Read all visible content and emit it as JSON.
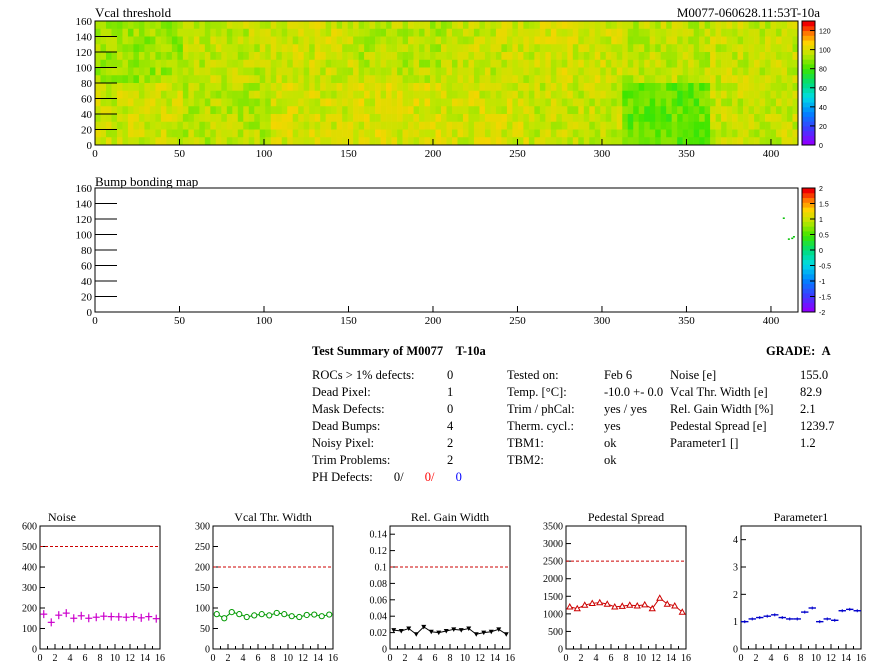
{
  "header": {
    "module_id": "M0077-060628.11:53T-10a"
  },
  "chart_data": [
    {
      "type": "heatmap",
      "title": "Vcal threshold",
      "x_ticks": [
        "0",
        "50",
        "100",
        "150",
        "200",
        "250",
        "300",
        "350",
        "400"
      ],
      "y_ticks": [
        "0",
        "20",
        "40",
        "60",
        "80",
        "100",
        "120",
        "140",
        "160"
      ],
      "xlim": [
        0,
        416
      ],
      "ylim": [
        0,
        160
      ],
      "colorbar_ticks": [
        "0",
        "20",
        "40",
        "60",
        "80",
        "100",
        "120"
      ],
      "colorbar_range": [
        0,
        130
      ],
      "roc_grid": {
        "cols": 8,
        "rows": 2,
        "col_width": 52,
        "row_height": 80
      },
      "roc_mean_values": [
        [
          92,
          97,
          99,
          96,
          98,
          100,
          97,
          98
        ],
        [
          99,
          96,
          100,
          101,
          100,
          98,
          85,
          98
        ]
      ],
      "roc_order_note": "top row listed first"
    },
    {
      "type": "heatmap",
      "title": "Bump bonding map",
      "x_ticks": [
        "0",
        "50",
        "100",
        "150",
        "200",
        "250",
        "300",
        "350",
        "400"
      ],
      "y_ticks": [
        "0",
        "20",
        "40",
        "60",
        "80",
        "100",
        "120",
        "140",
        "160"
      ],
      "xlim": [
        0,
        416
      ],
      "ylim": [
        0,
        160
      ],
      "colorbar_ticks": [
        "-2",
        "-1.5",
        "-1",
        "-0.5",
        "0",
        "0.5",
        "1",
        "1.5",
        "2"
      ],
      "colorbar_range": [
        -2,
        2
      ],
      "points": [
        [
          407,
          122
        ],
        [
          410,
          95
        ],
        [
          412,
          96
        ],
        [
          413,
          98
        ]
      ]
    },
    {
      "type": "line",
      "title": "Noise",
      "x_ticks": [
        "0",
        "2",
        "4",
        "6",
        "8",
        "10",
        "12",
        "14",
        "16"
      ],
      "y_ticks": [
        "0",
        "100",
        "200",
        "300",
        "400",
        "500",
        "600"
      ],
      "xlim": [
        0,
        16
      ],
      "ylim": [
        0,
        600
      ],
      "limit_line": 500,
      "marker": "plus",
      "color": "#cc00cc",
      "x": [
        0,
        1,
        2,
        3,
        4,
        5,
        6,
        7,
        8,
        9,
        10,
        11,
        12,
        13,
        14,
        15
      ],
      "values": [
        170,
        130,
        165,
        175,
        150,
        162,
        150,
        155,
        160,
        158,
        157,
        155,
        158,
        152,
        158,
        148
      ]
    },
    {
      "type": "line",
      "title": "Vcal Thr. Width",
      "x_ticks": [
        "0",
        "2",
        "4",
        "6",
        "8",
        "10",
        "12",
        "14",
        "16"
      ],
      "y_ticks": [
        "0",
        "50",
        "100",
        "150",
        "200",
        "250",
        "300"
      ],
      "xlim": [
        0,
        16
      ],
      "ylim": [
        0,
        300
      ],
      "limit_line": 200,
      "marker": "circle",
      "color": "#009900",
      "x": [
        0,
        1,
        2,
        3,
        4,
        5,
        6,
        7,
        8,
        9,
        10,
        11,
        12,
        13,
        14,
        15
      ],
      "values": [
        85,
        75,
        90,
        85,
        78,
        82,
        85,
        82,
        88,
        85,
        80,
        78,
        83,
        84,
        80,
        84
      ]
    },
    {
      "type": "line",
      "title": "Rel. Gain Width",
      "x_ticks": [
        "0",
        "2",
        "4",
        "6",
        "8",
        "10",
        "12",
        "14",
        "16"
      ],
      "y_ticks": [
        "0",
        "0.02",
        "0.04",
        "0.06",
        "0.08",
        "0.1",
        "0.12",
        "0.14"
      ],
      "xlim": [
        0,
        16
      ],
      "ylim": [
        0,
        0.15
      ],
      "limit_line": 0.1,
      "marker": "triangle-down",
      "color": "#000000",
      "x": [
        0,
        1,
        2,
        3,
        4,
        5,
        6,
        7,
        8,
        9,
        10,
        11,
        12,
        13,
        14,
        15
      ],
      "values": [
        0.023,
        0.022,
        0.025,
        0.018,
        0.027,
        0.021,
        0.02,
        0.022,
        0.024,
        0.023,
        0.025,
        0.018,
        0.02,
        0.021,
        0.024,
        0.018
      ]
    },
    {
      "type": "line",
      "title": "Pedestal Spread",
      "x_ticks": [
        "0",
        "2",
        "4",
        "6",
        "8",
        "10",
        "12",
        "14",
        "16"
      ],
      "y_ticks": [
        "0",
        "500",
        "1000",
        "1500",
        "2000",
        "2500",
        "3000",
        "3500"
      ],
      "xlim": [
        0,
        16
      ],
      "ylim": [
        0,
        3500
      ],
      "limit_line": 2500,
      "marker": "triangle-up",
      "color": "#cc0000",
      "x": [
        0,
        1,
        2,
        3,
        4,
        5,
        6,
        7,
        8,
        9,
        10,
        11,
        12,
        13,
        14,
        15
      ],
      "values": [
        1200,
        1150,
        1250,
        1300,
        1320,
        1280,
        1200,
        1220,
        1250,
        1230,
        1260,
        1150,
        1450,
        1280,
        1230,
        1050
      ]
    },
    {
      "type": "line",
      "title": "Parameter1",
      "x_ticks": [
        "0",
        "2",
        "4",
        "6",
        "8",
        "10",
        "12",
        "14",
        "16"
      ],
      "y_ticks": [
        "0",
        "1",
        "2",
        "3",
        "4"
      ],
      "xlim": [
        0,
        16
      ],
      "ylim": [
        0,
        4.5
      ],
      "marker": "hbar",
      "color": "#0000cc",
      "x": [
        0,
        1,
        2,
        3,
        4,
        5,
        6,
        7,
        8,
        9,
        10,
        11,
        12,
        13,
        14,
        15
      ],
      "values": [
        1.0,
        1.1,
        1.15,
        1.2,
        1.25,
        1.15,
        1.1,
        1.1,
        1.35,
        1.5,
        1.0,
        1.1,
        1.05,
        1.4,
        1.45,
        1.4
      ]
    }
  ],
  "summary": {
    "title": "Test Summary of M0077",
    "temp_tag": "T-10a",
    "grade_label": "GRADE:",
    "grade_value": "A",
    "defects": [
      {
        "label": "ROCs > 1% defects:",
        "value": "0"
      },
      {
        "label": "Dead Pixel:",
        "value": "1"
      },
      {
        "label": "Mask Defects:",
        "value": "0"
      },
      {
        "label": "Dead Bumps:",
        "value": "4"
      },
      {
        "label": "Noisy Pixel:",
        "value": "2"
      },
      {
        "label": "Trim Problems:",
        "value": "2"
      }
    ],
    "ph_defects": {
      "label": "PH Defects:",
      "v1": "0/",
      "v2": "0/",
      "v3": "0",
      "c1": "#000000",
      "c2": "#ff0000",
      "c3": "#0000ff"
    },
    "conditions": [
      {
        "label": "Tested on:",
        "value": "Feb 6"
      },
      {
        "label": "Temp. [°C]:",
        "value": "-10.0 +- 0.0"
      },
      {
        "label": "Trim / phCal:",
        "value": "yes / yes"
      },
      {
        "label": "Therm. cycl.:",
        "value": "yes"
      },
      {
        "label": "TBM1:",
        "value": "ok"
      },
      {
        "label": "TBM2:",
        "value": "ok"
      }
    ],
    "results": [
      {
        "label": "Noise [e]",
        "value": "155.0"
      },
      {
        "label": "Vcal Thr. Width [e]",
        "value": "82.9"
      },
      {
        "label": "Rel. Gain Width [%]",
        "value": "2.1"
      },
      {
        "label": "Pedestal Spread [e]",
        "value": "1239.7"
      },
      {
        "label": "Parameter1 []",
        "value": "1.2"
      }
    ]
  },
  "colors": {
    "limit_line": "#cc0000"
  }
}
